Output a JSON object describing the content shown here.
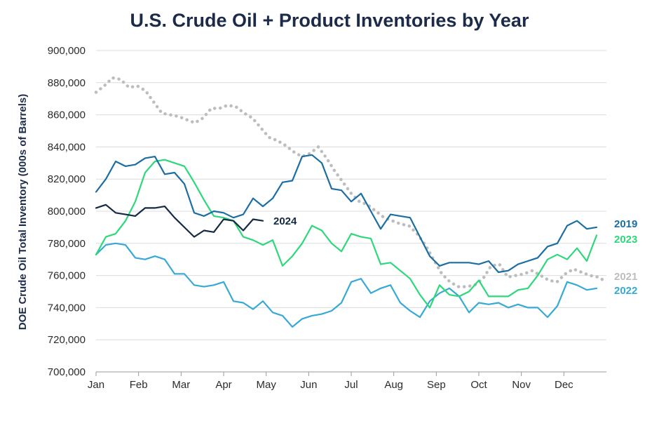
{
  "chart_data": {
    "type": "line",
    "title": "U.S. Crude Oil + Product Inventories by Year",
    "xlabel": "",
    "ylabel": "DOE Crude Oil Total Inventory (000s of Barrels)",
    "x_ticks": [
      "Jan",
      "Feb",
      "Mar",
      "Apr",
      "May",
      "Jun",
      "Jul",
      "Aug",
      "Sep",
      "Oct",
      "Nov",
      "Dec"
    ],
    "y_ticks": [
      "700,000",
      "720,000",
      "740,000",
      "760,000",
      "780,000",
      "800,000",
      "820,000",
      "840,000",
      "860,000",
      "880,000",
      "900,000"
    ],
    "ylim": [
      700000,
      900000
    ],
    "xlim": [
      1,
      53
    ],
    "grid": "horizontal",
    "legend": "series labels at line ends, right",
    "series": [
      {
        "name": "2021",
        "color": "#bdbdbd",
        "style": "dotted",
        "values": [
          874000,
          878000,
          883000,
          882000,
          877000,
          878000,
          875000,
          868000,
          861000,
          860000,
          859000,
          857000,
          855000,
          858000,
          864000,
          864000,
          866000,
          865000,
          861000,
          858000,
          852000,
          846000,
          844000,
          841000,
          837000,
          834000,
          836000,
          840000,
          833000,
          825000,
          818000,
          811000,
          806000,
          804000,
          800000,
          796000,
          794000,
          792000,
          791000,
          786000,
          779000,
          770000,
          761000,
          756000,
          753000,
          753000,
          754000,
          758000,
          766000,
          767000,
          759000,
          760000,
          761000,
          763000,
          760000,
          757000,
          756000,
          761000,
          764000,
          762000,
          760000,
          759000,
          756000
        ]
      },
      {
        "name": "2019",
        "color": "#1b6ea3",
        "style": "solid",
        "values": [
          812000,
          820000,
          831000,
          828000,
          829000,
          833000,
          834000,
          823000,
          824000,
          817000,
          799000,
          797000,
          800000,
          799000,
          796000,
          798000,
          808000,
          803000,
          808000,
          818000,
          819000,
          834000,
          835000,
          830000,
          814000,
          813000,
          806000,
          811000,
          800000,
          789000,
          798000,
          797000,
          796000,
          784000,
          772000,
          766000,
          768000,
          768000,
          768000,
          767000,
          769000,
          762000,
          763000,
          767000,
          769000,
          771000,
          778000,
          780000,
          791000,
          794000,
          789000,
          790000
        ]
      },
      {
        "name": "2023",
        "color": "#2dd87a",
        "style": "solid",
        "values": [
          773000,
          784000,
          786000,
          794000,
          806000,
          824000,
          831000,
          832000,
          830000,
          828000,
          818000,
          807000,
          797000,
          796000,
          794000,
          784000,
          782000,
          779000,
          782000,
          766000,
          772000,
          780000,
          791000,
          788000,
          780000,
          775000,
          786000,
          784000,
          783000,
          767000,
          768000,
          763000,
          758000,
          748000,
          740000,
          754000,
          748000,
          747000,
          750000,
          757000,
          747000,
          747000,
          747000,
          751000,
          752000,
          760000,
          770000,
          773000,
          770000,
          777000,
          769000,
          785000
        ]
      },
      {
        "name": "2022",
        "color": "#36a9d6",
        "style": "solid",
        "values": [
          773000,
          779000,
          780000,
          779000,
          771000,
          770000,
          772000,
          770000,
          761000,
          761000,
          754000,
          753000,
          754000,
          756000,
          744000,
          743000,
          739000,
          744000,
          737000,
          735000,
          728000,
          733000,
          735000,
          736000,
          738000,
          743000,
          756000,
          758000,
          749000,
          752000,
          754000,
          743000,
          738000,
          734000,
          744000,
          749000,
          752000,
          747000,
          737000,
          743000,
          742000,
          743000,
          740000,
          742000,
          740000,
          740000,
          734000,
          741000,
          756000,
          754000,
          751000,
          752000
        ]
      },
      {
        "name": "2024",
        "color": "#152a43",
        "style": "solid",
        "values": [
          802000,
          804000,
          799000,
          798000,
          797000,
          802000,
          802000,
          803000,
          796000,
          790000,
          784000,
          788000,
          787000,
          795000,
          794000,
          788000,
          795000,
          794000
        ]
      }
    ]
  }
}
